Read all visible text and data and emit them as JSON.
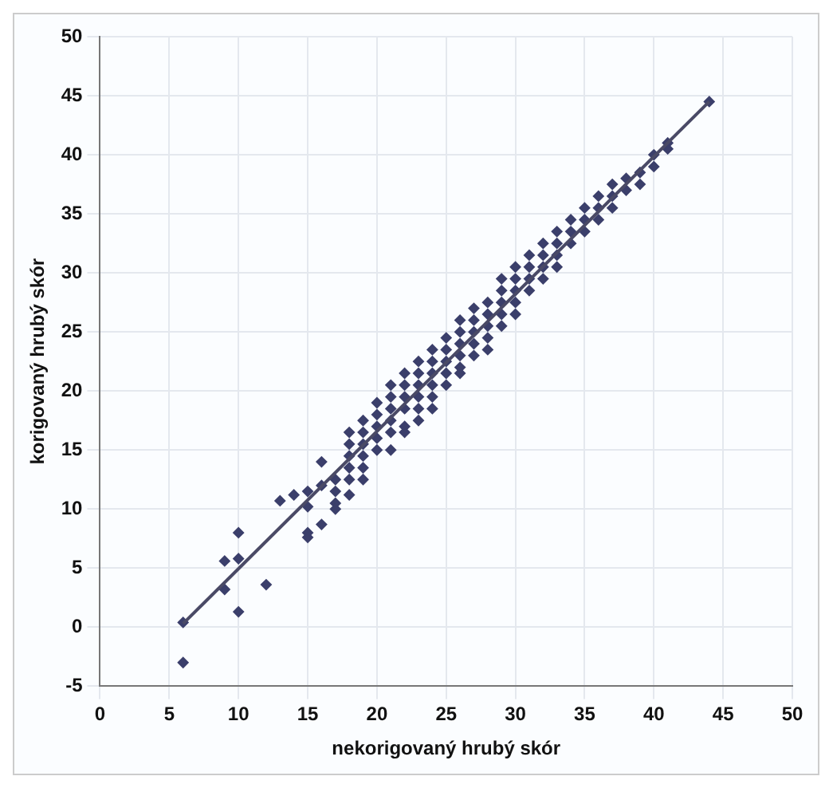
{
  "chart_data": {
    "type": "scatter",
    "xlabel": "nekorigovaný hrubý skór",
    "ylabel": "korigovaný hrubý skór",
    "xlim": [
      0,
      50
    ],
    "xticks": [
      0,
      5,
      10,
      15,
      20,
      25,
      30,
      35,
      40,
      45,
      50
    ],
    "ylim": [
      -5,
      50
    ],
    "yticks": [
      -5,
      0,
      5,
      10,
      15,
      20,
      25,
      30,
      35,
      40,
      45,
      50
    ],
    "grid": true,
    "legend": false,
    "marker": "diamond",
    "series": [
      {
        "color": "#3b3f6b",
        "x": [
          6,
          9,
          9,
          10,
          10,
          10,
          12,
          13,
          14,
          15,
          15,
          15,
          15,
          16,
          16,
          16,
          17,
          17,
          17,
          17,
          18,
          18,
          18,
          18,
          18,
          18,
          19,
          19,
          19,
          19,
          19,
          19,
          20,
          20,
          20,
          20,
          20,
          21,
          21,
          21,
          21,
          21,
          21,
          22,
          22,
          22,
          22,
          22,
          22,
          23,
          23,
          23,
          23,
          23,
          23,
          24,
          24,
          24,
          24,
          24,
          24,
          25,
          25,
          25,
          25,
          25,
          26,
          26,
          26,
          26,
          26,
          26,
          27,
          27,
          27,
          27,
          27,
          28,
          28,
          28,
          28,
          28,
          29,
          29,
          29,
          29,
          29,
          30,
          30,
          30,
          30,
          30,
          31,
          31,
          31,
          31,
          32,
          32,
          32,
          32,
          33,
          33,
          33,
          33,
          34,
          34,
          34,
          35,
          35,
          35,
          36,
          36,
          36,
          37,
          37,
          37,
          38,
          38,
          39,
          39,
          40,
          40,
          41,
          41,
          44,
          6
        ],
        "values": [
          0.4,
          5.6,
          3.2,
          8,
          5.8,
          1.3,
          3.6,
          10.7,
          11.2,
          11.5,
          10.2,
          8,
          7.6,
          14,
          12,
          8.7,
          12.5,
          11.5,
          10.5,
          10,
          16.5,
          15.5,
          14.5,
          13.5,
          12.5,
          11.2,
          17.5,
          16.5,
          15.5,
          14.5,
          13.5,
          12.5,
          19,
          18,
          17,
          16,
          15,
          20.5,
          19.5,
          18.5,
          17.5,
          16.5,
          15,
          21.5,
          20.5,
          19.5,
          18.5,
          17,
          16.5,
          22.5,
          21.5,
          20.5,
          19.5,
          18.5,
          17.5,
          23.5,
          22.5,
          21.5,
          20.5,
          19.5,
          18.5,
          24.5,
          23.5,
          22.5,
          21.5,
          20.5,
          26,
          25,
          24,
          23,
          22,
          21.5,
          27,
          26,
          25,
          24,
          23,
          27.5,
          26.5,
          25.5,
          24.5,
          23.5,
          29.5,
          28.5,
          27.5,
          26.5,
          25.5,
          30.5,
          29.5,
          28.5,
          27.5,
          26.5,
          31.5,
          30.5,
          29.5,
          28.5,
          32.5,
          31.5,
          30.5,
          29.5,
          33.5,
          32.5,
          31.5,
          30.5,
          34.5,
          33.5,
          32.5,
          35.5,
          34.5,
          33.5,
          36.5,
          35.5,
          34.5,
          37.5,
          36.5,
          35.5,
          38,
          37,
          38.5,
          37.5,
          40,
          39,
          41,
          40.5,
          44.5,
          -3
        ]
      },
      {
        "type": "line",
        "marker": "none",
        "color": "#4a4a66",
        "x": [
          6,
          44
        ],
        "values": [
          0.3,
          44.5
        ]
      }
    ]
  }
}
